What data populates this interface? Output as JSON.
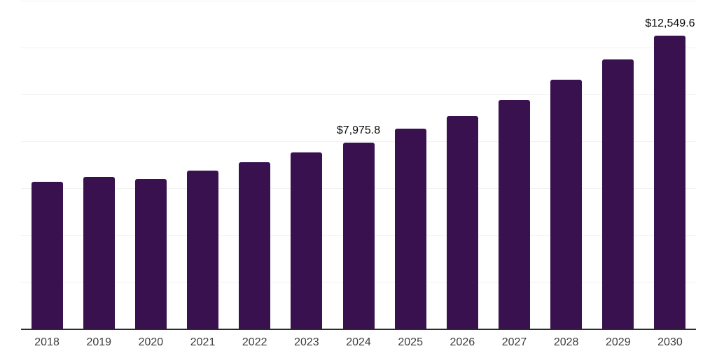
{
  "chart_data": {
    "type": "bar",
    "title": "",
    "xlabel": "",
    "ylabel": "",
    "categories": [
      "2018",
      "2019",
      "2020",
      "2021",
      "2022",
      "2023",
      "2024",
      "2025",
      "2026",
      "2027",
      "2028",
      "2029",
      "2030"
    ],
    "values": [
      6300,
      6510,
      6420,
      6790,
      7120,
      7550,
      7975.8,
      8570,
      9100,
      9790,
      10660,
      11520,
      12549.6
    ],
    "annotations": [
      {
        "category": "2024",
        "label": "$7,975.8"
      },
      {
        "category": "2030",
        "label": "$12,549.6"
      }
    ],
    "ylim": [
      0,
      14000
    ],
    "gridline_interval": 2000,
    "grid": "horizontal",
    "y_tick_labels_visible": false,
    "legend": "none",
    "colors": {
      "bar": "#38114e",
      "gridline": "#f1f1f2",
      "axis": "#2b2b2b",
      "data_label": "#0a0a0a",
      "tick_label": "#3c3c3c",
      "background": "#ffffff"
    }
  }
}
